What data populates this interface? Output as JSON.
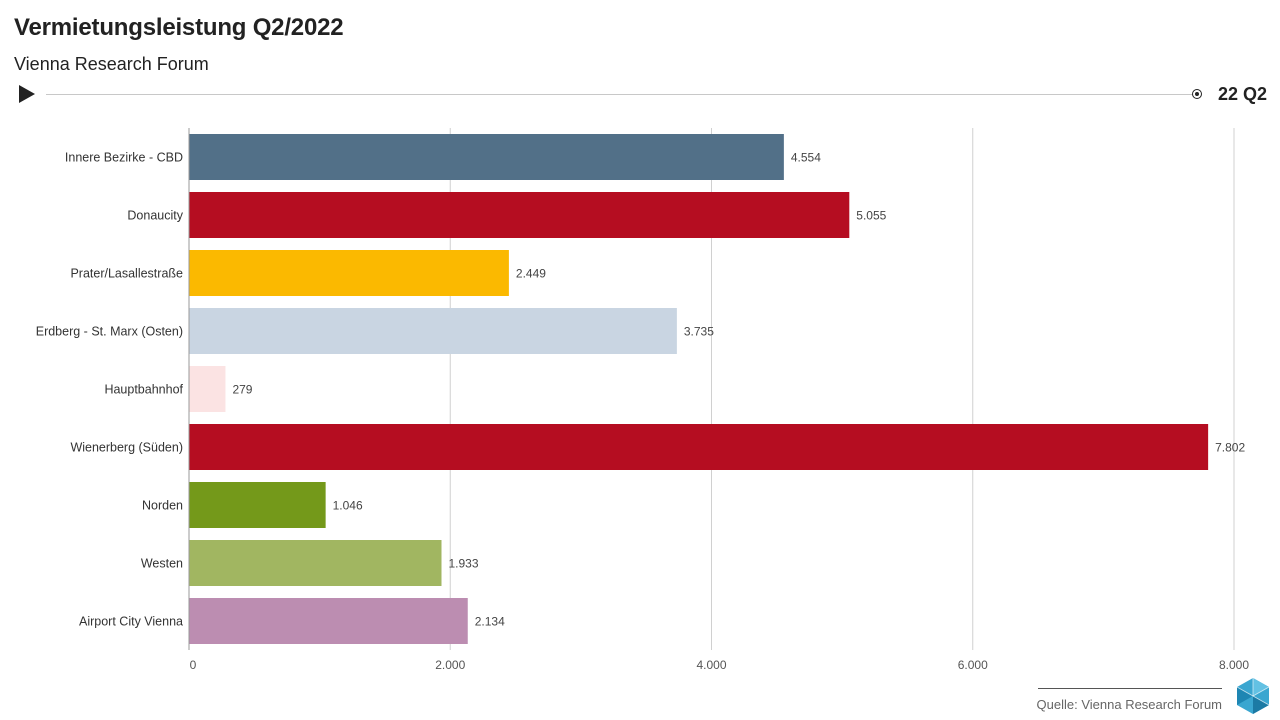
{
  "header": {
    "title": "Vermietungsleistung Q2/2022",
    "subtitle": "Vienna Research Forum"
  },
  "timeline": {
    "current_period": "22 Q2",
    "progress": 1.0
  },
  "footer": {
    "source": "Quelle: Vienna Research Forum"
  },
  "chart_data": {
    "type": "bar",
    "orientation": "horizontal",
    "title": "Vermietungsleistung Q2/2022",
    "xlabel": "",
    "ylabel": "",
    "xlim": [
      0,
      8000
    ],
    "xticks": [
      0,
      2000,
      4000,
      6000,
      8000
    ],
    "xtick_labels": [
      "0",
      "2.000",
      "4.000",
      "6.000",
      "8.000"
    ],
    "grid": true,
    "categories": [
      "Innere Bezirke - CBD",
      "Donaucity",
      "Prater/Lasallestraße",
      "Erdberg - St. Marx (Osten)",
      "Hauptbahnhof",
      "Wienerberg (Süden)",
      "Norden",
      "Westen",
      "Airport City Vienna"
    ],
    "values": [
      4554,
      5055,
      2449,
      3735,
      279,
      7802,
      1046,
      1933,
      2134
    ],
    "value_labels": [
      "4.554",
      "5.055",
      "2.449",
      "3.735",
      "279",
      "7.802",
      "1.046",
      "1.933",
      "2.134"
    ],
    "colors": [
      "#527088",
      "#b50d21",
      "#fbb900",
      "#c9d5e2",
      "#fbe3e3",
      "#b50d21",
      "#74991a",
      "#a1b661",
      "#bc8db1"
    ]
  }
}
